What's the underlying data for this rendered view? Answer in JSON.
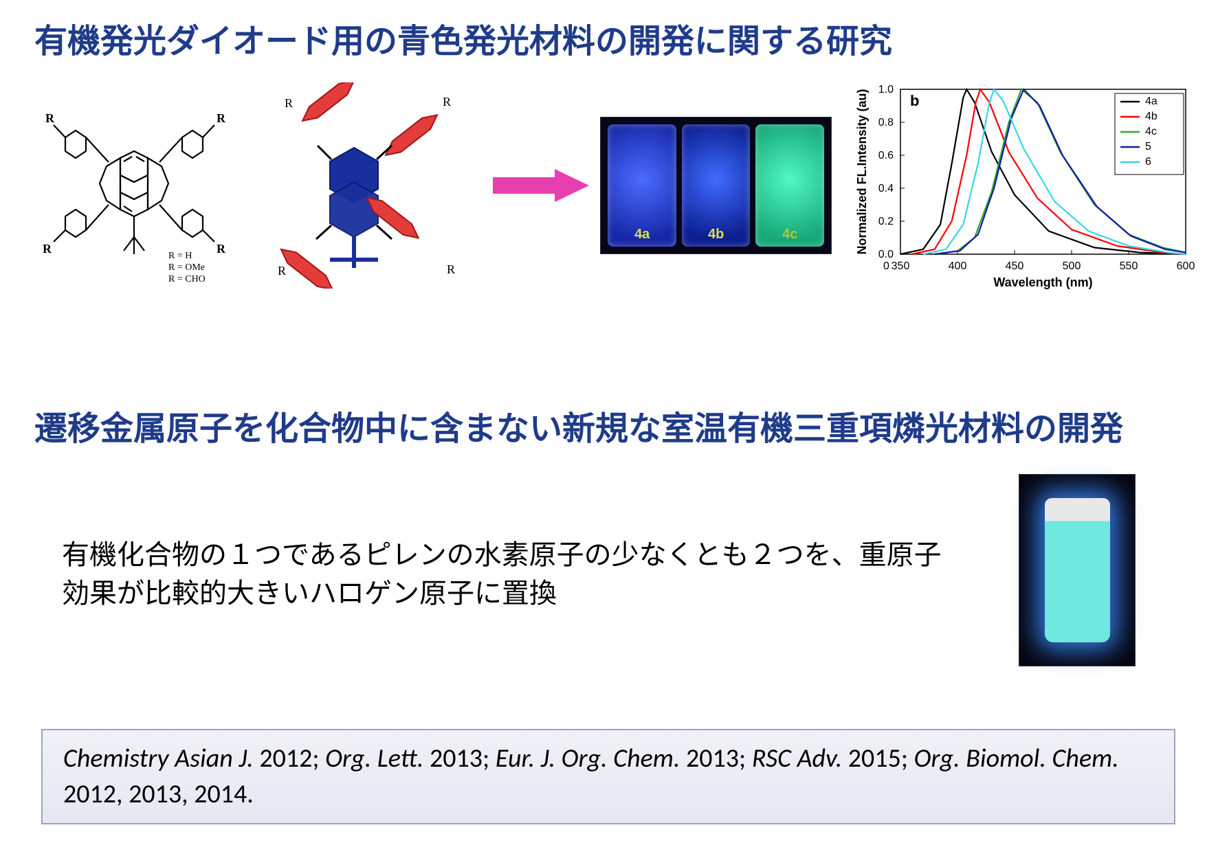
{
  "title1": "有機発光ダイオード用の青色発光材料の開発に関する研究",
  "title2": "遷移金属原子を化合物中に含まない新規な室温有機三重項燐光材料の開発",
  "subtext": "有機化合物の１つであるピレンの水素原子の少なくとも２つを、重原子効果が比較的大きいハロゲン原子に置換",
  "r_legend": {
    "l1": "R = H",
    "l2": "R = OMe",
    "l3": "R = CHO"
  },
  "r_labels": [
    "R",
    "R",
    "R",
    "R",
    "R",
    "R",
    "R",
    "R",
    "R"
  ],
  "arrow_color": "#e83fb0",
  "vials": [
    {
      "label": "4a"
    },
    {
      "label": "4b"
    },
    {
      "label": "4c"
    }
  ],
  "chart": {
    "type": "line",
    "panel_label": "b",
    "xlabel": "Wavelength (nm)",
    "ylabel": "Normalized FL.Intensity (au)",
    "xlim": [
      350,
      600
    ],
    "ylim": [
      0,
      1.0
    ],
    "xticks": [
      350,
      400,
      450,
      500,
      550,
      600
    ],
    "yticks": [
      0.0,
      0.2,
      0.4,
      0.6,
      0.8,
      1.0
    ],
    "label_fontsize": 18,
    "tick_fontsize": 16,
    "background_color": "#ffffff",
    "axis_color": "#000000",
    "series": [
      {
        "name": "4a",
        "color": "#000000",
        "peak_nm": 408,
        "points": [
          [
            350,
            0
          ],
          [
            370,
            0.03
          ],
          [
            385,
            0.18
          ],
          [
            395,
            0.55
          ],
          [
            405,
            0.95
          ],
          [
            408,
            1.0
          ],
          [
            415,
            0.92
          ],
          [
            430,
            0.62
          ],
          [
            450,
            0.36
          ],
          [
            480,
            0.14
          ],
          [
            520,
            0.04
          ],
          [
            560,
            0.01
          ],
          [
            600,
            0
          ]
        ]
      },
      {
        "name": "4b",
        "color": "#ff0000",
        "peak_nm": 420,
        "points": [
          [
            360,
            0
          ],
          [
            380,
            0.03
          ],
          [
            395,
            0.2
          ],
          [
            408,
            0.6
          ],
          [
            416,
            0.92
          ],
          [
            420,
            1.0
          ],
          [
            428,
            0.92
          ],
          [
            445,
            0.62
          ],
          [
            470,
            0.34
          ],
          [
            500,
            0.15
          ],
          [
            540,
            0.05
          ],
          [
            580,
            0.01
          ],
          [
            600,
            0
          ]
        ]
      },
      {
        "name": "4c",
        "color": "#2eaa2e",
        "peak_nm": 456,
        "points": [
          [
            380,
            0
          ],
          [
            400,
            0.02
          ],
          [
            415,
            0.1
          ],
          [
            430,
            0.38
          ],
          [
            445,
            0.8
          ],
          [
            456,
            1.0
          ],
          [
            470,
            0.92
          ],
          [
            490,
            0.62
          ],
          [
            520,
            0.3
          ],
          [
            550,
            0.12
          ],
          [
            580,
            0.04
          ],
          [
            600,
            0.01
          ]
        ]
      },
      {
        "name": "5",
        "color": "#1818a8",
        "peak_nm": 458,
        "points": [
          [
            380,
            0
          ],
          [
            402,
            0.02
          ],
          [
            418,
            0.12
          ],
          [
            432,
            0.4
          ],
          [
            447,
            0.82
          ],
          [
            458,
            1.0
          ],
          [
            472,
            0.9
          ],
          [
            492,
            0.6
          ],
          [
            522,
            0.29
          ],
          [
            552,
            0.11
          ],
          [
            582,
            0.03
          ],
          [
            600,
            0.01
          ]
        ]
      },
      {
        "name": "6",
        "color": "#36d6e6",
        "peak_nm": 432,
        "points": [
          [
            370,
            0
          ],
          [
            390,
            0.03
          ],
          [
            405,
            0.18
          ],
          [
            418,
            0.55
          ],
          [
            428,
            0.92
          ],
          [
            432,
            1.0
          ],
          [
            440,
            0.93
          ],
          [
            458,
            0.64
          ],
          [
            485,
            0.32
          ],
          [
            515,
            0.14
          ],
          [
            550,
            0.05
          ],
          [
            585,
            0.01
          ],
          [
            600,
            0
          ]
        ]
      }
    ],
    "legend_pos": "top-right"
  },
  "schematic": {
    "core_color": "#1a2f9e",
    "arm_color": "#e43b3b",
    "bond_color": "#000000"
  },
  "citations_parts": [
    {
      "t": "Chemistry Asian J.",
      "i": true
    },
    {
      "t": " 2012; "
    },
    {
      "t": "Org. Lett.",
      "i": true
    },
    {
      "t": " 2013; "
    },
    {
      "t": "Eur. J. Org. Chem.",
      "i": true
    },
    {
      "t": " 2013; "
    },
    {
      "t": "RSC Adv.",
      "i": true
    },
    {
      "t": " 2015; "
    },
    {
      "t": "Org. Biomol. Chem.",
      "i": true
    },
    {
      "t": " 2012, 2013, 2014."
    }
  ]
}
